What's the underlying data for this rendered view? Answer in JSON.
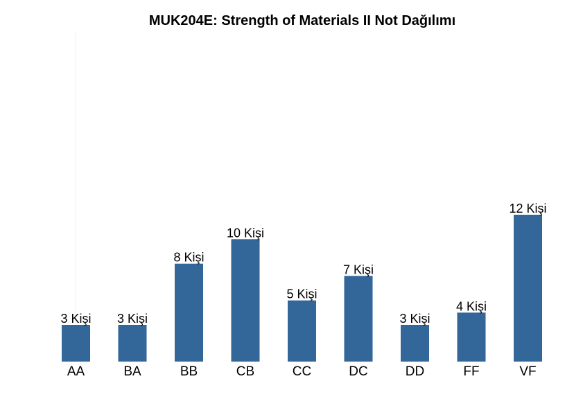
{
  "chart_data": {
    "type": "bar",
    "title": "MUK204E: Strength of Materials II Not Dağılımı",
    "xlabel": "",
    "ylabel": "",
    "categories": [
      "AA",
      "BA",
      "BB",
      "CB",
      "CC",
      "DC",
      "DD",
      "FF",
      "VF"
    ],
    "values": [
      3,
      3,
      8,
      10,
      5,
      7,
      3,
      4,
      12
    ],
    "data_labels": [
      "3 Kişi",
      "3 Kişi",
      "8 Kişi",
      "10 Kişi",
      "5 Kişi",
      "7 Kişi",
      "3 Kişi",
      "4 Kişi",
      "12 Kişi"
    ],
    "ylim": [
      0,
      27
    ],
    "bar_color": "#336699",
    "grid": false,
    "legend": "none"
  }
}
